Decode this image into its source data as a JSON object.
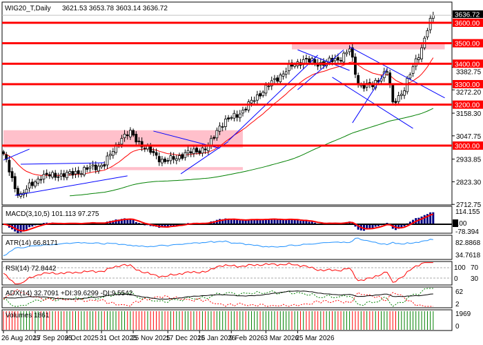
{
  "header": {
    "symbol": "WIG20_T,Daily",
    "ohlc": "3621.53 3653.78 3603.14 3636.72"
  },
  "colors": {
    "level": "#ff0000",
    "zone": "#ffc0cb",
    "trend": "#0000ff",
    "ma_fast": "#ff0000",
    "ma_slow": "#008000",
    "bull": "#008000",
    "bear": "#ff0000",
    "macd_hist": "#000080",
    "atr": "#1e90ff"
  },
  "chart_data": {
    "type": "candlestick",
    "title": "WIG20_T,Daily",
    "last": {
      "open": 3621.53,
      "high": 3653.78,
      "low": 3603.14,
      "close": 3636.72,
      "label": "3636.72"
    },
    "bars": 150,
    "close_path": [
      [
        0,
        2960
      ],
      [
        4,
        2790
      ],
      [
        6,
        2760
      ],
      [
        13,
        2850
      ],
      [
        23,
        2860
      ],
      [
        35,
        2910
      ],
      [
        41,
        3040
      ],
      [
        44,
        3060
      ],
      [
        49,
        2990
      ],
      [
        56,
        2920
      ],
      [
        63,
        2960
      ],
      [
        71,
        2990
      ],
      [
        75,
        3100
      ],
      [
        83,
        3170
      ],
      [
        90,
        3270
      ],
      [
        99,
        3380
      ],
      [
        104,
        3420
      ],
      [
        109,
        3400
      ],
      [
        116,
        3420
      ],
      [
        120,
        3470
      ],
      [
        123,
        3300
      ],
      [
        128,
        3290
      ],
      [
        133,
        3370
      ],
      [
        135,
        3200
      ],
      [
        139,
        3280
      ],
      [
        142,
        3380
      ],
      [
        145,
        3480
      ],
      [
        147,
        3570
      ],
      [
        149,
        3636.72
      ]
    ],
    "ylim": [
      2680,
      3660
    ],
    "y_ticks": [
      "3382.75",
      "3272.20",
      "3158.30",
      "3047.75",
      "2933.85",
      "2823.30",
      "2712.75"
    ],
    "y_tick_values": [
      3382.75,
      3272.2,
      3158.3,
      3047.75,
      2933.85,
      2823.3,
      2712.75
    ],
    "levels": [
      {
        "value": 3600,
        "label": "3600.00"
      },
      {
        "value": 3500,
        "label": "3500.00"
      },
      {
        "value": 3400,
        "label": "3400.00"
      },
      {
        "value": 3300,
        "label": "3300.00"
      },
      {
        "value": 3200,
        "label": "3200.00"
      },
      {
        "value": 3000,
        "label": "3000.00"
      }
    ],
    "zones": [
      {
        "from": 0,
        "to": 83,
        "low": 2990,
        "high": 3075
      },
      {
        "from": 100,
        "to": 153,
        "low": 3470,
        "high": 3505
      },
      {
        "from": 37,
        "to": 83,
        "low": 2880,
        "high": 2895
      }
    ],
    "trendlines": [
      [
        0,
        2929,
        9,
        2983
      ],
      [
        4,
        2757,
        43,
        2852
      ],
      [
        6,
        2909,
        35,
        2916
      ],
      [
        52,
        3071,
        75,
        2987
      ],
      [
        61.5,
        2862,
        78,
        3020
      ],
      [
        78,
        3024,
        109,
        3442
      ],
      [
        102,
        3468,
        120,
        3367
      ],
      [
        102,
        3273,
        118,
        3468
      ],
      [
        120,
        3482,
        153,
        3233
      ],
      [
        114,
        3334,
        142,
        3084
      ],
      [
        121,
        3111,
        133,
        3374
      ]
    ],
    "x_ticks": [
      {
        "bar": 0,
        "label": "26 Aug 2025"
      },
      {
        "bar": 11,
        "label": "17 Sep 2025"
      },
      {
        "bar": 22,
        "label": "9 Oct 2025"
      },
      {
        "bar": 34,
        "label": "31 Oct 2025"
      },
      {
        "bar": 45,
        "label": "25 Nov 2025"
      },
      {
        "bar": 57,
        "label": "17 Dec 2025"
      },
      {
        "bar": 68,
        "label": "16 Jan 2026"
      },
      {
        "bar": 79,
        "label": "9 Feb 2026"
      },
      {
        "bar": 91,
        "label": "3 Mar 2026"
      },
      {
        "bar": 102,
        "label": "25 Mar 2026"
      }
    ],
    "indicators": {
      "macd": {
        "label": "MACD(3,10,5) 101.113 97.275",
        "max": "114.155",
        "zero": "0.00",
        "min": "-78.394"
      },
      "atr": {
        "label": "ATR(14) 66.8171",
        "max": "82.8868",
        "min": "34.7618"
      },
      "rsi": {
        "label": "RSI(14) 72.8442",
        "t100": "100",
        "t70": "70",
        "t30": "30",
        "t0": "0"
      },
      "adx": {
        "label": "ADX(14) 32.7091 +DI:39.6299 -DI:9.5542",
        "max": "62",
        "min": "2"
      },
      "volume": {
        "label": "Volumes 1861",
        "max": "1969",
        "min": "0"
      }
    }
  }
}
